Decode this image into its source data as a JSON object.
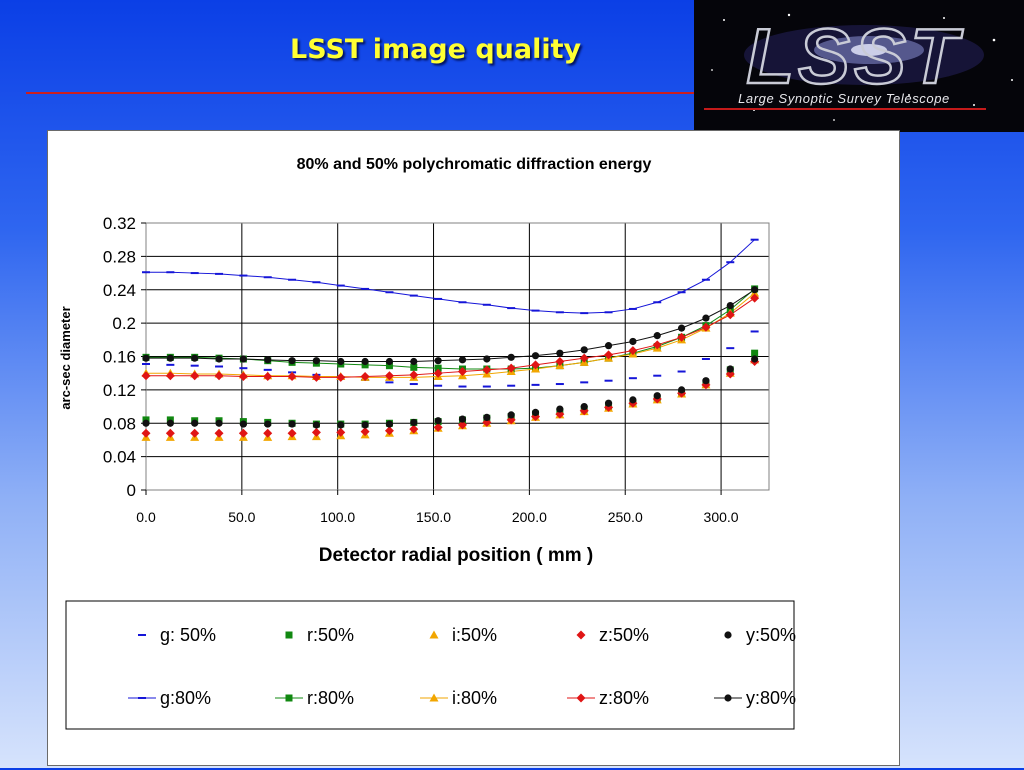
{
  "slide": {
    "title": "LSST image quality",
    "logo_text": "Large Synoptic Survey Telescope",
    "logo_mark": "LSST",
    "accent_color": "#cc1f1f",
    "title_color": "#ffff33"
  },
  "chart_data": {
    "type": "scatter",
    "title": "80% and 50% polychromatic diffraction energy",
    "xlabel": "Detector radial position ( mm )",
    "ylabel": "arc-sec diameter",
    "xlim": [
      0,
      325
    ],
    "ylim": [
      0,
      0.32
    ],
    "xticks": [
      0,
      50,
      100,
      150,
      200,
      250,
      300
    ],
    "xtick_labels": [
      "0.0",
      "50.0",
      "100.0",
      "150.0",
      "200.0",
      "250.0",
      "300.0"
    ],
    "yticks": [
      0,
      0.04,
      0.08,
      0.12,
      0.16,
      0.2,
      0.24,
      0.28,
      0.32
    ],
    "ytick_labels": [
      "0",
      "0.04",
      "0.08",
      "0.12",
      "0.16",
      "0.2",
      "0.24",
      "0.28",
      "0.32"
    ],
    "grid": true,
    "legend_position": "bottom",
    "x": [
      0,
      12.7,
      25.4,
      38.1,
      50.8,
      63.5,
      76.2,
      88.9,
      101.6,
      114.3,
      127,
      139.7,
      152.4,
      165.1,
      177.8,
      190.5,
      203.2,
      215.9,
      228.6,
      241.3,
      254,
      266.7,
      279.4,
      292.1,
      304.8,
      317.5
    ],
    "series": [
      {
        "name": "g: 50%",
        "color": "#1515d8",
        "marker": "dash",
        "line": false,
        "values": [
          0.151,
          0.15,
          0.149,
          0.148,
          0.146,
          0.144,
          0.141,
          0.138,
          0.135,
          0.132,
          0.129,
          0.127,
          0.125,
          0.124,
          0.124,
          0.125,
          0.126,
          0.127,
          0.129,
          0.131,
          0.134,
          0.137,
          0.142,
          0.157,
          0.17,
          0.19
        ]
      },
      {
        "name": "r:50%",
        "color": "#118811",
        "marker": "square",
        "line": false,
        "values": [
          0.084,
          0.084,
          0.083,
          0.083,
          0.082,
          0.081,
          0.08,
          0.079,
          0.079,
          0.079,
          0.08,
          0.081,
          0.082,
          0.084,
          0.086,
          0.088,
          0.091,
          0.094,
          0.097,
          0.1,
          0.104,
          0.109,
          0.116,
          0.127,
          0.144,
          0.164
        ]
      },
      {
        "name": "i:50%",
        "color": "#f2a600",
        "marker": "triangle",
        "line": false,
        "values": [
          0.063,
          0.063,
          0.063,
          0.063,
          0.063,
          0.063,
          0.064,
          0.064,
          0.065,
          0.066,
          0.068,
          0.071,
          0.074,
          0.077,
          0.08,
          0.083,
          0.087,
          0.09,
          0.094,
          0.098,
          0.103,
          0.108,
          0.115,
          0.126,
          0.14,
          0.156
        ]
      },
      {
        "name": "z:50%",
        "color": "#e01515",
        "marker": "diamond",
        "line": false,
        "values": [
          0.068,
          0.068,
          0.068,
          0.068,
          0.068,
          0.068,
          0.068,
          0.069,
          0.069,
          0.07,
          0.071,
          0.073,
          0.075,
          0.078,
          0.081,
          0.084,
          0.088,
          0.091,
          0.095,
          0.099,
          0.104,
          0.109,
          0.116,
          0.126,
          0.139,
          0.154
        ]
      },
      {
        "name": "y:50%",
        "color": "#111111",
        "marker": "circle",
        "line": false,
        "values": [
          0.08,
          0.08,
          0.08,
          0.08,
          0.079,
          0.079,
          0.079,
          0.078,
          0.078,
          0.078,
          0.079,
          0.081,
          0.083,
          0.085,
          0.087,
          0.09,
          0.093,
          0.097,
          0.1,
          0.104,
          0.108,
          0.113,
          0.12,
          0.131,
          0.145,
          0.157
        ]
      },
      {
        "name": "g:80%",
        "color": "#1515d8",
        "marker": "dash",
        "line": true,
        "values": [
          0.261,
          0.261,
          0.26,
          0.259,
          0.257,
          0.255,
          0.252,
          0.249,
          0.245,
          0.241,
          0.237,
          0.233,
          0.229,
          0.225,
          0.222,
          0.218,
          0.215,
          0.213,
          0.212,
          0.213,
          0.217,
          0.225,
          0.237,
          0.252,
          0.273,
          0.3
        ]
      },
      {
        "name": "r:80%",
        "color": "#118811",
        "marker": "square",
        "line": true,
        "values": [
          0.159,
          0.159,
          0.159,
          0.158,
          0.157,
          0.155,
          0.153,
          0.152,
          0.151,
          0.15,
          0.149,
          0.147,
          0.146,
          0.145,
          0.145,
          0.145,
          0.146,
          0.149,
          0.153,
          0.158,
          0.164,
          0.172,
          0.183,
          0.197,
          0.216,
          0.241
        ]
      },
      {
        "name": "i:80%",
        "color": "#f2a600",
        "marker": "triangle",
        "line": true,
        "values": [
          0.14,
          0.14,
          0.139,
          0.139,
          0.138,
          0.137,
          0.137,
          0.136,
          0.136,
          0.135,
          0.135,
          0.135,
          0.136,
          0.137,
          0.139,
          0.142,
          0.145,
          0.149,
          0.153,
          0.158,
          0.163,
          0.17,
          0.18,
          0.194,
          0.212,
          0.236
        ]
      },
      {
        "name": "z:80%",
        "color": "#e01515",
        "marker": "diamond",
        "line": true,
        "values": [
          0.137,
          0.137,
          0.137,
          0.137,
          0.136,
          0.136,
          0.136,
          0.135,
          0.135,
          0.136,
          0.137,
          0.138,
          0.14,
          0.142,
          0.144,
          0.146,
          0.15,
          0.154,
          0.158,
          0.162,
          0.167,
          0.174,
          0.183,
          0.195,
          0.21,
          0.23
        ]
      },
      {
        "name": "y:80%",
        "color": "#111111",
        "marker": "circle",
        "line": true,
        "values": [
          0.158,
          0.158,
          0.158,
          0.157,
          0.157,
          0.156,
          0.155,
          0.155,
          0.154,
          0.154,
          0.154,
          0.154,
          0.155,
          0.156,
          0.157,
          0.159,
          0.161,
          0.164,
          0.168,
          0.173,
          0.178,
          0.185,
          0.194,
          0.206,
          0.221,
          0.24
        ]
      }
    ]
  }
}
